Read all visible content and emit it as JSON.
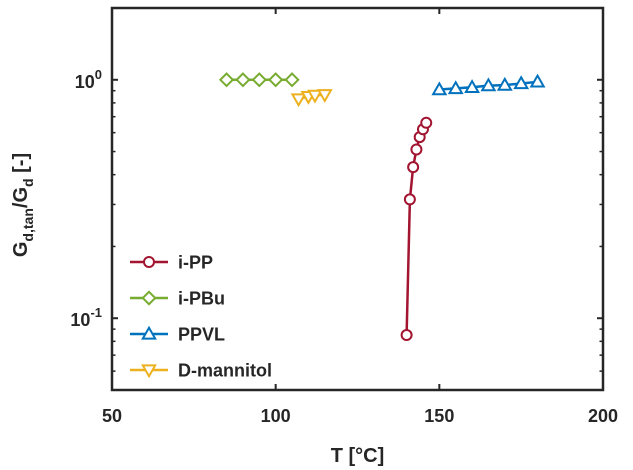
{
  "chart_data": {
    "type": "line",
    "xlabel": "T [°C]",
    "ylabel": "G_{d,tan}/G_{d} [-]",
    "ylabel_parts": {
      "g1": "G",
      "sub1": "d,tan",
      "slash": "/G",
      "sub2": "d",
      "unit": " [-]"
    },
    "xlim": [
      50,
      200
    ],
    "ylim": [
      0.05,
      2.0
    ],
    "yscale": "log",
    "x_ticks": [
      "50",
      "100",
      "150",
      "200"
    ],
    "x_tick_values": [
      50,
      100,
      150,
      200
    ],
    "y_ticks": [
      {
        "value": 1.0,
        "base": "10",
        "exp": "0"
      },
      {
        "value": 0.1,
        "base": "10",
        "exp": "-1"
      }
    ],
    "grid": false,
    "legend_placement": "bottom-left",
    "series": [
      {
        "name": "i-PP",
        "marker": "circle",
        "color": "#A2142F",
        "x": [
          140.0,
          141.0,
          142.0,
          143.0,
          144.0,
          145.0,
          146.0
        ],
        "y": [
          0.085,
          0.315,
          0.43,
          0.51,
          0.575,
          0.62,
          0.66
        ]
      },
      {
        "name": "i-PBu",
        "marker": "diamond",
        "color": "#77AC30",
        "x": [
          85,
          90,
          95,
          100,
          105
        ],
        "y": [
          1.0,
          1.0,
          1.0,
          1.0,
          1.0
        ]
      },
      {
        "name": "PPVL",
        "marker": "triangle-up",
        "color": "#0072BD",
        "x": [
          150,
          155,
          160,
          165,
          170,
          175,
          180
        ],
        "y": [
          0.91,
          0.92,
          0.93,
          0.945,
          0.95,
          0.965,
          0.98
        ]
      },
      {
        "name": "D-mannitol",
        "marker": "triangle-down",
        "color": "#EDB120",
        "x": [
          107,
          110,
          112,
          115
        ],
        "y": [
          0.83,
          0.85,
          0.86,
          0.865
        ]
      }
    ]
  }
}
